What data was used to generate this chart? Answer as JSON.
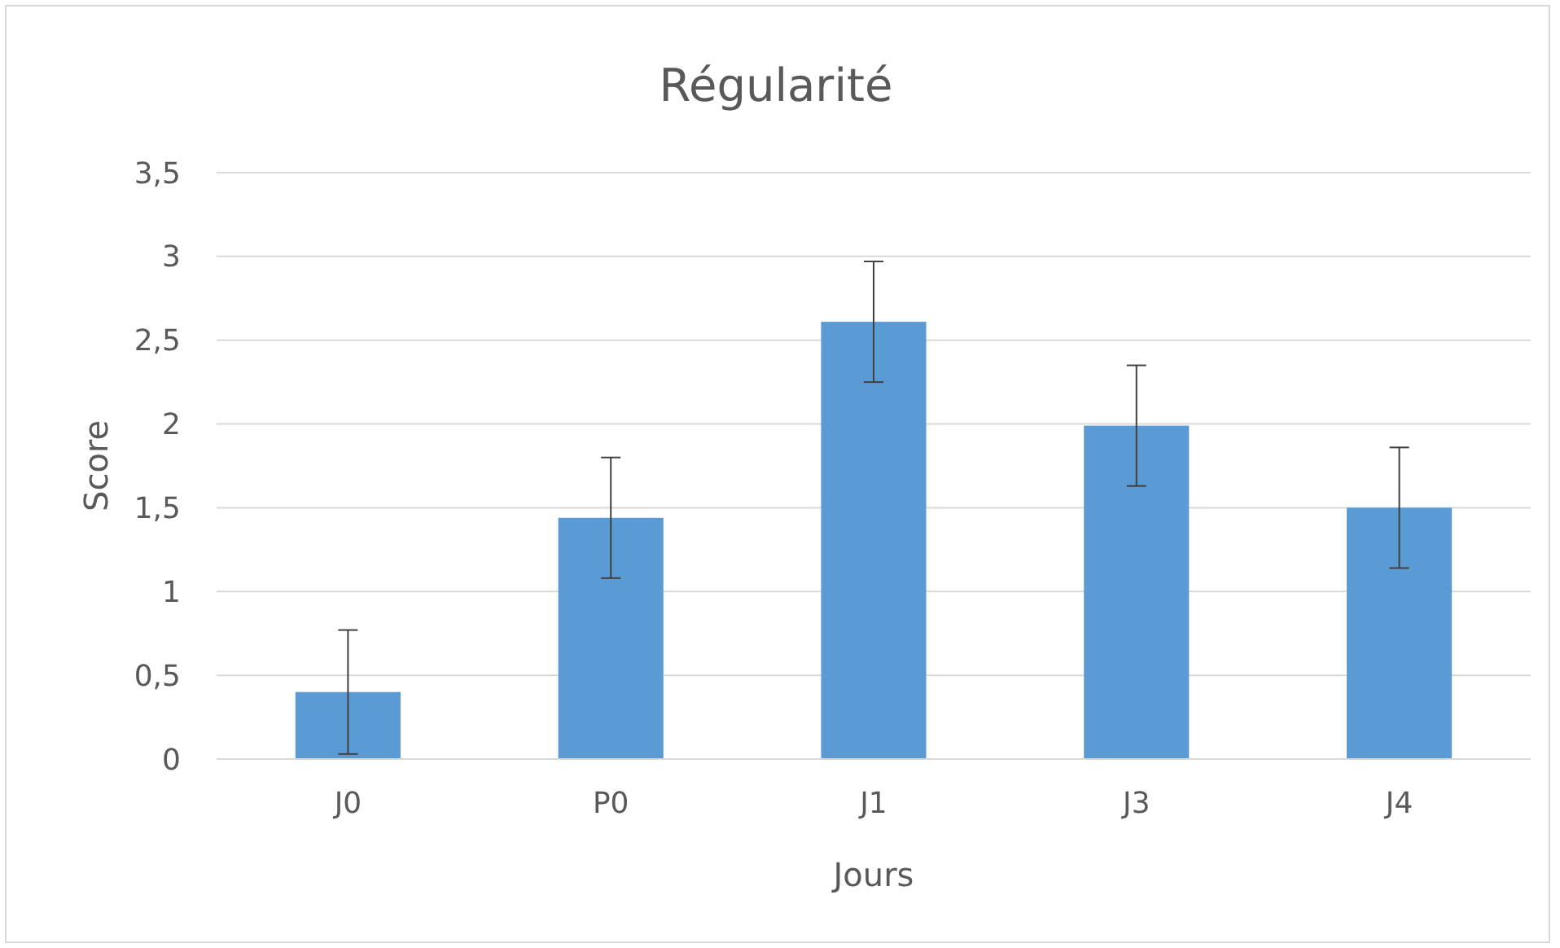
{
  "chart_data": {
    "type": "bar",
    "title": "Régularité",
    "xlabel": "Jours",
    "ylabel": "Score",
    "categories": [
      "J0",
      "P0",
      "J1",
      "J3",
      "J4"
    ],
    "values": [
      0.4,
      1.44,
      2.61,
      1.99,
      1.5
    ],
    "errors": [
      0.37,
      0.36,
      0.36,
      0.36,
      0.36
    ],
    "color": "#5b9bd5",
    "ylim": [
      0,
      3.5
    ],
    "yticks": [
      0,
      {
        "value": 0.5,
        "label": "0,5"
      },
      1,
      {
        "value": 1.5,
        "label": "1,5"
      },
      2,
      {
        "value": 2.5,
        "label": "2,5"
      },
      3,
      {
        "value": 3.5,
        "label": "3,5"
      }
    ],
    "grid": "y"
  }
}
